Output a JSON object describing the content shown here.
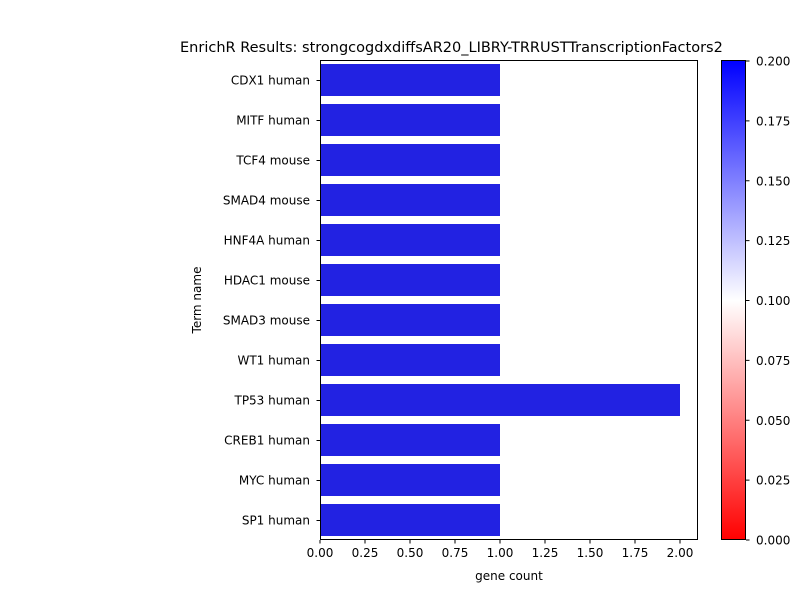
{
  "chart_data": {
    "type": "bar",
    "orientation": "horizontal",
    "title": "EnrichR Results: strongcogdxdiffsAR20_LIBRY-TRRUSTTranscriptionFactors2",
    "xlabel": "gene count",
    "ylabel": "Term name",
    "categories": [
      "CDX1 human",
      "MITF human",
      "TCF4 mouse",
      "SMAD4 mouse",
      "HNF4A human",
      "HDAC1 mouse",
      "SMAD3 mouse",
      "WT1 human",
      "TP53 human",
      "CREB1 human",
      "MYC human",
      "SP1 human"
    ],
    "values": [
      1,
      1,
      1,
      1,
      1,
      1,
      1,
      1,
      2,
      1,
      1,
      1
    ],
    "bar_color": "#2222e2",
    "xlim": [
      0,
      2.1
    ],
    "xticks": [
      "0.00",
      "0.25",
      "0.50",
      "0.75",
      "1.00",
      "1.25",
      "1.50",
      "1.75",
      "2.00"
    ],
    "colorbar": {
      "range": [
        0,
        0.2
      ],
      "ticks": [
        "0.000",
        "0.025",
        "0.050",
        "0.075",
        "0.100",
        "0.125",
        "0.150",
        "0.175",
        "0.200"
      ],
      "colors": [
        "#ff0000",
        "#ffffff",
        "#0000ff"
      ]
    },
    "grid": false,
    "legend": "none"
  }
}
